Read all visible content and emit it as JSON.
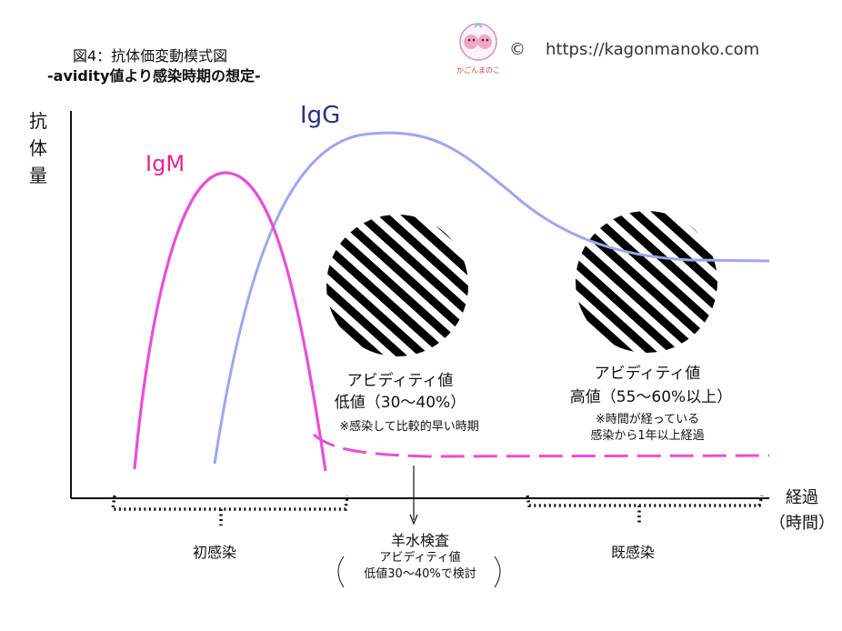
{
  "title": {
    "line1": "図4：抗体価変動模式図",
    "line2": "-avidity値より感染時期の想定-"
  },
  "copyright": {
    "symbol": "©",
    "url": "https://kagonmanoko.com"
  },
  "logo": {
    "text": "かごんまのこ"
  },
  "axes": {
    "y_label": [
      "抗",
      "体",
      "量"
    ],
    "x_label_line1": "経過",
    "x_label_line2": "（時間）"
  },
  "curves": {
    "igm_label": "IgM",
    "igg_label": "IgG",
    "igm_color": "#e84fd8",
    "igg_color": "#9fa6f0"
  },
  "annotations": {
    "low": {
      "line1": "アビディティ値",
      "line2": "低値（30～40%）",
      "note": "※感染して比較的早い時期"
    },
    "high": {
      "line1": "アビディティ値",
      "line2": "高値（55～60%以上）",
      "note1": "※時間が経っている",
      "note2": "感染から1年以上経過"
    }
  },
  "phases": {
    "initial": "初感染",
    "past": "既感染",
    "amnio_title": "羊水検査",
    "amnio_sub1": "アビディティ値",
    "amnio_sub2": "低値30～40%で検討"
  }
}
